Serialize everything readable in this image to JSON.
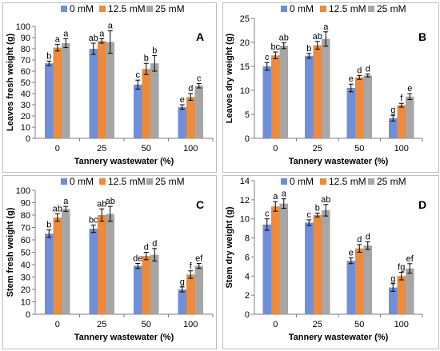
{
  "chart_data": [
    {
      "panel": "A",
      "type": "bar",
      "xlabel": "Tannery wastewater (%)",
      "ylabel": "Leaves fresh weight (g)",
      "categories": [
        "0",
        "25",
        "50",
        "100"
      ],
      "ylim": [
        0,
        100
      ],
      "yticks": [
        "0",
        "10",
        "20",
        "30",
        "40",
        "50",
        "60",
        "70",
        "80",
        "90",
        "100"
      ],
      "grid": false,
      "legend": "top",
      "series": [
        {
          "name": "0 mM",
          "color": "#6f8fd8",
          "values": [
            67,
            80,
            48,
            28
          ],
          "errors": [
            2,
            5,
            4,
            2
          ],
          "letters": [
            "b",
            "ab",
            "c",
            "e"
          ]
        },
        {
          "name": "12.5 mM",
          "color": "#ee8a3a",
          "values": [
            81,
            87,
            62,
            37
          ],
          "errors": [
            3,
            2,
            5,
            3
          ],
          "letters": [
            "a",
            "a",
            "b",
            "d"
          ]
        },
        {
          "name": "25 mM",
          "color": "#a6a6a6",
          "values": [
            85,
            86,
            67,
            47
          ],
          "errors": [
            4,
            10,
            7,
            2
          ],
          "letters": [
            "a",
            "a",
            "b",
            "c"
          ]
        }
      ]
    },
    {
      "panel": "B",
      "type": "bar",
      "xlabel": "Tannery wastewater (%)",
      "ylabel": "Leaves dry weight (g)",
      "categories": [
        "0",
        "25",
        "50",
        "100"
      ],
      "ylim": [
        0,
        25
      ],
      "yticks": [
        "0",
        "5",
        "10",
        "15",
        "20",
        "25"
      ],
      "grid": false,
      "legend": "top",
      "series": [
        {
          "name": "0 mM",
          "color": "#6f8fd8",
          "values": [
            15.0,
            17.2,
            10.5,
            4.2
          ],
          "errors": [
            0.8,
            0.5,
            0.8,
            0.6
          ],
          "letters": [
            "c",
            "b",
            "e",
            "g"
          ]
        },
        {
          "name": "12.5 mM",
          "color": "#ee8a3a",
          "values": [
            17.3,
            19.4,
            12.7,
            6.9
          ],
          "errors": [
            0.7,
            0.8,
            0.4,
            0.4
          ],
          "letters": [
            "bc",
            "ab",
            "d",
            "f"
          ]
        },
        {
          "name": "25 mM",
          "color": "#a6a6a6",
          "values": [
            19.3,
            20.7,
            13.1,
            8.7
          ],
          "errors": [
            0.6,
            1.5,
            0.3,
            0.6
          ],
          "letters": [
            "ab",
            "a",
            "d",
            "e"
          ]
        }
      ]
    },
    {
      "panel": "C",
      "type": "bar",
      "xlabel": "Tannery wastewater (%)",
      "ylabel": "Stem fresh weight (g)",
      "categories": [
        "0",
        "25",
        "50",
        "100"
      ],
      "ylim": [
        0,
        100
      ],
      "yticks": [
        "0",
        "10",
        "20",
        "30",
        "40",
        "50",
        "60",
        "70",
        "80",
        "90",
        "100"
      ],
      "grid": false,
      "legend": "top",
      "series": [
        {
          "name": "0 mM",
          "color": "#6f8fd8",
          "values": [
            65,
            69,
            39,
            20
          ],
          "errors": [
            3,
            3,
            2,
            2
          ],
          "letters": [
            "b",
            "bc",
            "de",
            "g"
          ]
        },
        {
          "name": "12.5 mM",
          "color": "#ee8a3a",
          "values": [
            78,
            80,
            47,
            32
          ],
          "errors": [
            3,
            5,
            3,
            3
          ],
          "letters": [
            "ab",
            "ab",
            "d",
            "f"
          ]
        },
        {
          "name": "25 mM",
          "color": "#a6a6a6",
          "values": [
            85,
            81,
            48,
            39
          ],
          "errors": [
            2,
            6,
            5,
            2
          ],
          "letters": [
            "a",
            "ab",
            "d",
            "ef"
          ]
        }
      ]
    },
    {
      "panel": "D",
      "type": "bar",
      "xlabel": "Tannery wastewater (%)",
      "ylabel": "Stem dry weight (g)",
      "categories": [
        "0",
        "25",
        "50",
        "100"
      ],
      "ylim": [
        0,
        14
      ],
      "yticks": [
        "0",
        "2",
        "4",
        "6",
        "8",
        "10",
        "12",
        "14"
      ],
      "grid": false,
      "legend": "top",
      "series": [
        {
          "name": "0 mM",
          "color": "#6f8fd8",
          "values": [
            9.4,
            9.6,
            5.6,
            2.8
          ],
          "errors": [
            0.6,
            0.3,
            0.3,
            0.4
          ],
          "letters": [
            "c",
            "c",
            "e",
            "g"
          ]
        },
        {
          "name": "12.5 mM",
          "color": "#ee8a3a",
          "values": [
            11.3,
            10.4,
            6.9,
            4.0
          ],
          "errors": [
            0.5,
            0.2,
            0.4,
            0.4
          ],
          "letters": [
            "a",
            "b",
            "d",
            "fg"
          ]
        },
        {
          "name": "25 mM",
          "color": "#a6a6a6",
          "values": [
            11.6,
            10.9,
            7.2,
            4.8
          ],
          "errors": [
            0.5,
            0.6,
            0.4,
            0.5
          ],
          "letters": [
            "a",
            "ab",
            "d",
            "ef"
          ]
        }
      ]
    }
  ]
}
